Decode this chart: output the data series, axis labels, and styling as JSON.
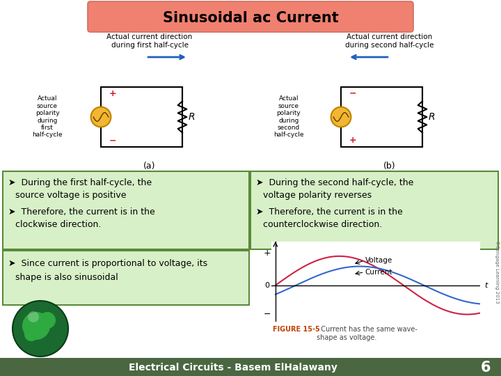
{
  "title": "Sinusoidal ac Current",
  "title_bg": "#f08070",
  "title_fg": "#000000",
  "bg_color": "#ffffff",
  "bottom_bar_color": "#4a6741",
  "bottom_text": "Electrical Circuits - Basem ElHalawany",
  "bottom_number": "6",
  "bullet_box_color": "#d8f0c8",
  "bullet_box_border": "#5a8a3a",
  "fig_caption_bold": "FIGURE 15-5",
  "fig_caption_rest": "  Current has the same wave-\nshape as voltage.",
  "circuit_a_label": "(a)",
  "circuit_b_label": "(b)",
  "left_arrow_label": "Actual current direction\nduring first half-cycle",
  "right_arrow_label": "Actual current direction\nduring second half-cycle",
  "left_polarity_label": "Actual\nsource\npolarity\nduring\nfirst\nhalf-cycle",
  "right_polarity_label": "Actual\nsource\npolarity\nduring\nsecond\nhalf-cycle",
  "cengage_text": "©Cengage Learning 2013"
}
